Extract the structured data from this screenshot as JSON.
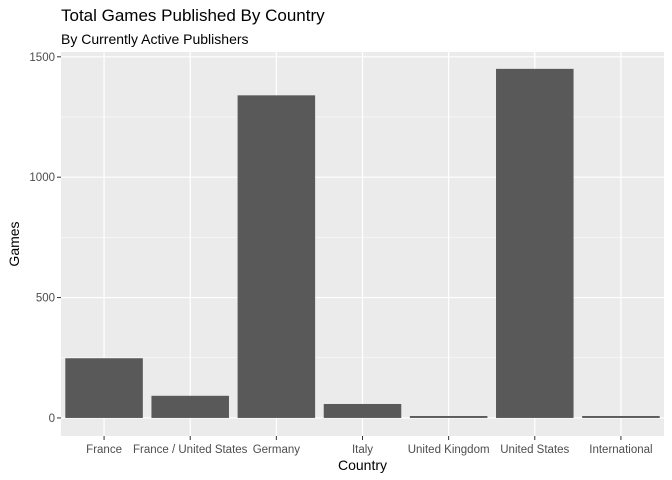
{
  "chart_data": {
    "type": "bar",
    "title": "Total Games Published By Country",
    "subtitle": "By Currently Active Publishers",
    "xlabel": "Country",
    "ylabel": "Games",
    "categories": [
      "France",
      "France / United States",
      "Germany",
      "Italy",
      "United Kingdom",
      "United States",
      "International"
    ],
    "values": [
      248,
      92,
      1340,
      58,
      8,
      1450,
      8
    ],
    "ylim": [
      -75,
      1520
    ],
    "yticks": [
      0,
      500,
      1000,
      1500
    ],
    "grid": true,
    "colors": {
      "bar": "#595959",
      "panel": "#ebebeb",
      "grid": "#ffffff"
    }
  }
}
